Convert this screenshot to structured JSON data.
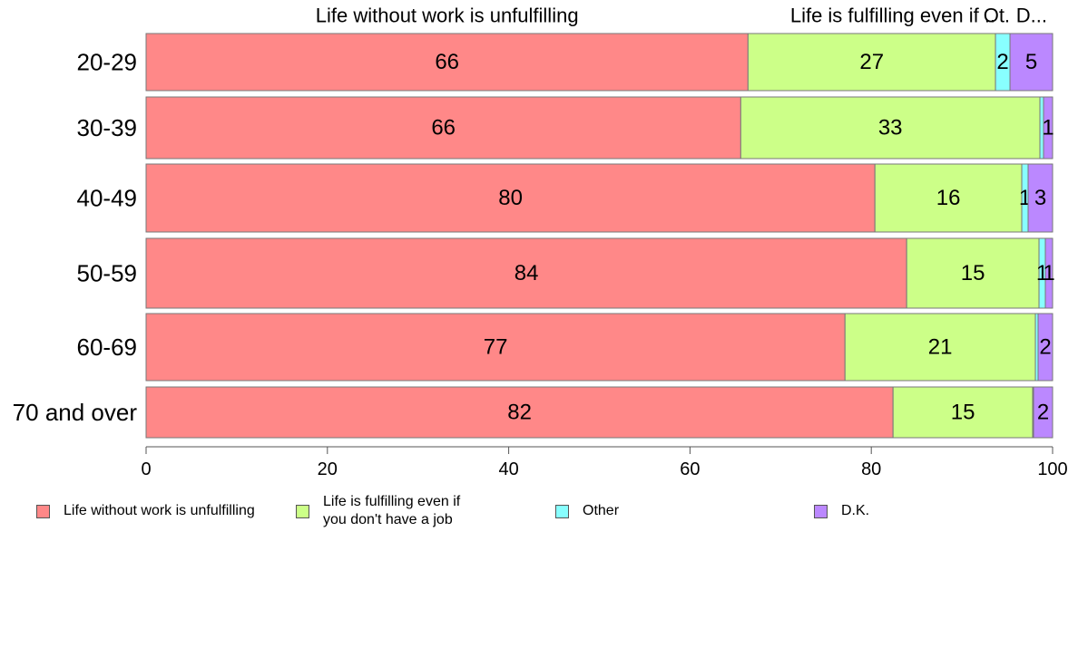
{
  "chart_data": {
    "type": "bar",
    "orientation": "horizontal",
    "stacked": true,
    "categories": [
      "20-29",
      "30-39",
      "40-49",
      "50-59",
      "60-69",
      "70 and over"
    ],
    "series": [
      {
        "name": "Life without work is unfulfilling",
        "color": "#ff8888",
        "values": [
          66.4,
          65.6,
          80.4,
          83.9,
          77.1,
          82.4
        ],
        "labels": [
          "66",
          "66",
          "80",
          "84",
          "77",
          "82"
        ]
      },
      {
        "name": "Life is fulfilling even if you don't have a job",
        "color": "#ccff88",
        "values": [
          27.3,
          33.0,
          16.2,
          14.6,
          21.0,
          15.4
        ],
        "labels": [
          "27",
          "33",
          "16",
          "15",
          "21",
          "15"
        ]
      },
      {
        "name": "Other",
        "color": "#88ffff",
        "values": [
          1.6,
          0.4,
          0.7,
          0.7,
          0.3,
          0.1
        ],
        "labels": [
          "2",
          "",
          "1",
          "1",
          "",
          ""
        ]
      },
      {
        "name": "D.K.",
        "color": "#bb88ff",
        "values": [
          4.7,
          1.0,
          2.7,
          0.8,
          1.6,
          2.1
        ],
        "labels": [
          "5",
          "1",
          "3",
          "1",
          "2",
          "2"
        ]
      }
    ],
    "top_labels": [
      "Life without work is unfulfilling",
      "Life is fulfilling even if ..",
      "Ot.",
      "D..."
    ],
    "xlim": [
      0,
      100
    ],
    "xticks": [
      "0",
      "20",
      "40",
      "60",
      "80",
      "100"
    ],
    "legend_position": "bottom",
    "legend_labels": [
      "Life without work is unfulfilling",
      "Life is fulfilling even if\nyou don't have a job",
      "Other",
      "D.K."
    ],
    "grid": false
  }
}
